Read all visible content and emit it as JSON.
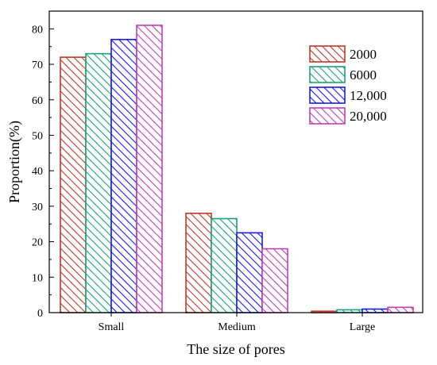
{
  "chart_data": {
    "type": "bar",
    "categories": [
      "Small",
      "Medium",
      "Large"
    ],
    "xlabel": "The size of pores",
    "ylabel": "Proportion(%)",
    "ylim": [
      0,
      85
    ],
    "yticks": [
      0,
      10,
      20,
      30,
      40,
      50,
      60,
      70,
      80
    ],
    "grid": false,
    "legend_position": "top-right",
    "pattern": "diagonal-hatch",
    "series": [
      {
        "name": "2000",
        "color": "#c0392b",
        "values": [
          72.0,
          28.0,
          0.4
        ]
      },
      {
        "name": "6000",
        "color": "#1aa37a",
        "values": [
          73.0,
          26.5,
          0.8
        ]
      },
      {
        "name": "12,000",
        "color": "#1a1ae6",
        "values": [
          77.0,
          22.5,
          1.0
        ]
      },
      {
        "name": "20,000",
        "color": "#c040b8",
        "values": [
          81.0,
          18.0,
          1.5
        ]
      }
    ]
  }
}
